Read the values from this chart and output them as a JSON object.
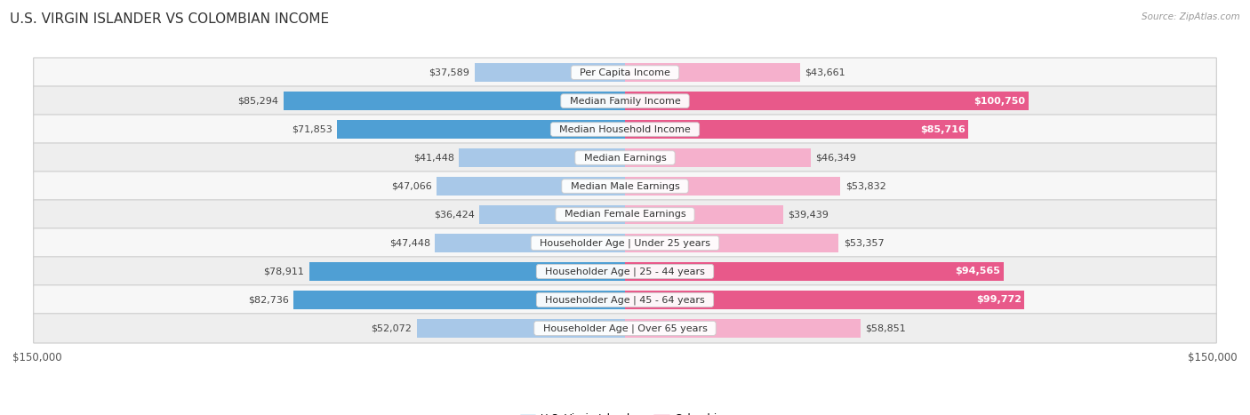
{
  "title": "U.S. VIRGIN ISLANDER VS COLOMBIAN INCOME",
  "source": "Source: ZipAtlas.com",
  "categories": [
    "Per Capita Income",
    "Median Family Income",
    "Median Household Income",
    "Median Earnings",
    "Median Male Earnings",
    "Median Female Earnings",
    "Householder Age | Under 25 years",
    "Householder Age | 25 - 44 years",
    "Householder Age | 45 - 64 years",
    "Householder Age | Over 65 years"
  ],
  "virgin_islander_values": [
    37589,
    85294,
    71853,
    41448,
    47066,
    36424,
    47448,
    78911,
    82736,
    52072
  ],
  "colombian_values": [
    43661,
    100750,
    85716,
    46349,
    53832,
    39439,
    53357,
    94565,
    99772,
    58851
  ],
  "virgin_islander_labels": [
    "$37,589",
    "$85,294",
    "$71,853",
    "$41,448",
    "$47,066",
    "$36,424",
    "$47,448",
    "$78,911",
    "$82,736",
    "$52,072"
  ],
  "colombian_labels": [
    "$43,661",
    "$100,750",
    "$85,716",
    "$46,349",
    "$53,832",
    "$39,439",
    "$53,357",
    "$94,565",
    "$99,772",
    "$58,851"
  ],
  "vi_dark_indices": [
    1,
    2,
    7,
    8
  ],
  "col_dark_indices": [
    1,
    2,
    7,
    8
  ],
  "virgin_islander_color_light": "#a8c8e8",
  "virgin_islander_color_dark": "#4f9fd4",
  "colombian_color_light": "#f5b0cc",
  "colombian_color_dark": "#e8598a",
  "max_value": 150000,
  "x_label_left": "$150,000",
  "x_label_right": "$150,000",
  "legend_vi": "U.S. Virgin Islander",
  "legend_col": "Colombian",
  "background_color": "#ffffff",
  "row_bg_light": "#f7f7f7",
  "row_bg_dark": "#eeeeee",
  "row_border_color": "#cccccc",
  "title_fontsize": 11,
  "bar_label_fontsize": 8,
  "cat_label_fontsize": 8
}
